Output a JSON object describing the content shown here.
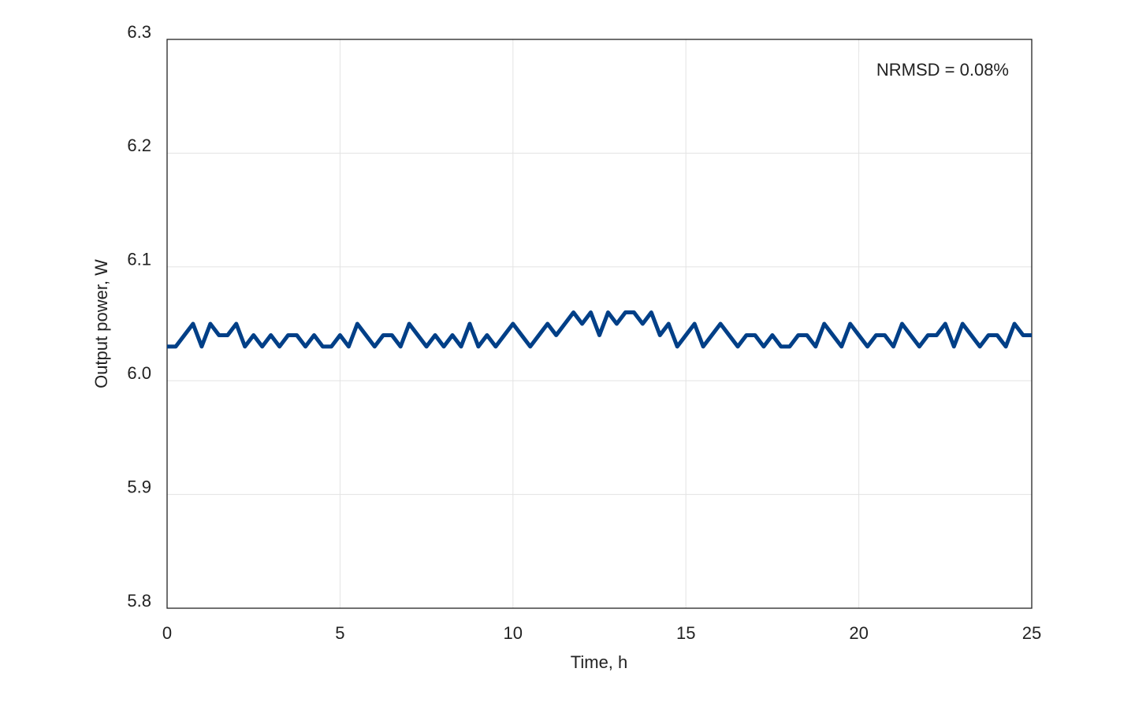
{
  "chart_data": {
    "type": "line",
    "xlabel": "Time, h",
    "ylabel": "Output power, W",
    "annotation": "NRMSD = 0.08%",
    "x": [
      0,
      0.25,
      0.5,
      0.75,
      1,
      1.25,
      1.5,
      1.75,
      2,
      2.25,
      2.5,
      2.75,
      3,
      3.25,
      3.5,
      3.75,
      4,
      4.25,
      4.5,
      4.75,
      5,
      5.25,
      5.5,
      5.75,
      6,
      6.25,
      6.5,
      6.75,
      7,
      7.25,
      7.5,
      7.75,
      8,
      8.25,
      8.5,
      8.75,
      9,
      9.25,
      9.5,
      9.75,
      10,
      10.25,
      10.5,
      10.75,
      11,
      11.25,
      11.5,
      11.75,
      12,
      12.25,
      12.5,
      12.75,
      13,
      13.25,
      13.5,
      13.75,
      14,
      14.25,
      14.5,
      14.75,
      15,
      15.25,
      15.5,
      15.75,
      16,
      16.25,
      16.5,
      16.75,
      17,
      17.25,
      17.5,
      17.75,
      18,
      18.25,
      18.5,
      18.75,
      19,
      19.25,
      19.5,
      19.75,
      20,
      20.25,
      20.5,
      20.75,
      21,
      21.25,
      21.5,
      21.75,
      22,
      22.25,
      22.5,
      22.75,
      23,
      23.25,
      23.5,
      23.75,
      24,
      24.25,
      24.5,
      24.75,
      25
    ],
    "series": [
      {
        "color": "#003f87",
        "values": [
          6.03,
          6.03,
          6.04,
          6.05,
          6.03,
          6.05,
          6.04,
          6.04,
          6.05,
          6.03,
          6.04,
          6.03,
          6.04,
          6.03,
          6.04,
          6.04,
          6.03,
          6.04,
          6.03,
          6.03,
          6.04,
          6.03,
          6.05,
          6.04,
          6.03,
          6.04,
          6.04,
          6.03,
          6.05,
          6.04,
          6.03,
          6.04,
          6.03,
          6.04,
          6.03,
          6.05,
          6.03,
          6.04,
          6.03,
          6.04,
          6.05,
          6.04,
          6.03,
          6.04,
          6.05,
          6.04,
          6.05,
          6.06,
          6.05,
          6.06,
          6.04,
          6.06,
          6.05,
          6.06,
          6.06,
          6.05,
          6.06,
          6.04,
          6.05,
          6.03,
          6.04,
          6.05,
          6.03,
          6.04,
          6.05,
          6.04,
          6.03,
          6.04,
          6.04,
          6.03,
          6.04,
          6.03,
          6.03,
          6.04,
          6.04,
          6.03,
          6.05,
          6.04,
          6.03,
          6.05,
          6.04,
          6.03,
          6.04,
          6.04,
          6.03,
          6.05,
          6.04,
          6.03,
          6.04,
          6.04,
          6.05,
          6.03,
          6.05,
          6.04,
          6.03,
          6.04,
          6.04,
          6.03,
          6.05,
          6.04,
          6.04
        ]
      }
    ],
    "xlim": [
      0,
      25
    ],
    "xticks": [
      0,
      5,
      10,
      15,
      20,
      25
    ],
    "ylim": [
      5.8,
      6.3
    ],
    "yticks": [
      5.8,
      5.9,
      {
        "value": 6,
        "label": "6.0"
      },
      6.1,
      6.2,
      6.3
    ],
    "grid": true
  }
}
